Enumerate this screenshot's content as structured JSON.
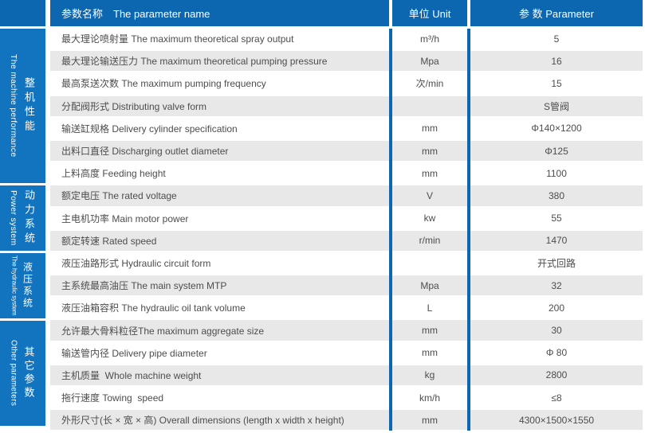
{
  "colors": {
    "header_blue": "#0c67b0",
    "sidebar_blue": "#1273bf",
    "stripe_gray": "#e8e8e8",
    "text_gray": "#4c4d4f"
  },
  "header": {
    "name": "参数名称　The parameter name",
    "unit": "单位 Unit",
    "value": "参 数 Parameter"
  },
  "sidebar": {
    "sections": [
      {
        "en": "The machine performance",
        "zh": "整机性能"
      },
      {
        "en": "Power system",
        "zh": "动力系统"
      },
      {
        "en": "The hydraulic system",
        "zh": "液压系统"
      },
      {
        "en": "Other parameters",
        "zh": "其它参数"
      }
    ]
  },
  "rows": [
    {
      "name": "最大理论喷射量 The maximum theoretical spray output",
      "unit": "m³/h",
      "value": "5"
    },
    {
      "name": "最大理论输送压力 The maximum theoretical pumping pressure",
      "unit": "Mpa",
      "value": "16"
    },
    {
      "name": "最高泵送次数 The maximum pumping frequency",
      "unit": "次/min",
      "value": "15"
    },
    {
      "name": "分配阀形式 Distributing valve form",
      "unit": "",
      "value": "S管阀"
    },
    {
      "name": "输送缸规格 Delivery cylinder specification",
      "unit": "mm",
      "value": "Φ140×1200"
    },
    {
      "name": "出料口直径 Discharging outlet diameter",
      "unit": "mm",
      "value": "Φ125"
    },
    {
      "name": "上料高度 Feeding height",
      "unit": "mm",
      "value": "1100"
    },
    {
      "name": "额定电压 The rated voltage",
      "unit": "V",
      "value": "380"
    },
    {
      "name": "主电机功率 Main motor power",
      "unit": "kw",
      "value": "55"
    },
    {
      "name": "额定转速 Rated speed",
      "unit": "r/min",
      "value": "1470"
    },
    {
      "name": "液压油路形式 Hydraulic circuit form",
      "unit": "",
      "value": "开式回路"
    },
    {
      "name": "主系统最高油压 The main system MTP",
      "unit": "Mpa",
      "value": "32"
    },
    {
      "name": "液压油箱容积 The hydraulic oil tank volume",
      "unit": "L",
      "value": "200"
    },
    {
      "name": "允许最大骨料粒径The maximum aggregate size",
      "unit": "mm",
      "value": "30"
    },
    {
      "name": "输送管内径 Delivery pipe diameter",
      "unit": "mm",
      "value": "Φ 80"
    },
    {
      "name": "主机质量  Whole machine weight",
      "unit": "kg",
      "value": "2800"
    },
    {
      "name": "拖行速度 Towing  speed",
      "unit": "km/h",
      "value": "≤8"
    },
    {
      "name": "外形尺寸(长 × 宽 × 高) Overall dimensions (length x width x height)",
      "unit": "mm",
      "value": "4300×1500×1550"
    }
  ]
}
